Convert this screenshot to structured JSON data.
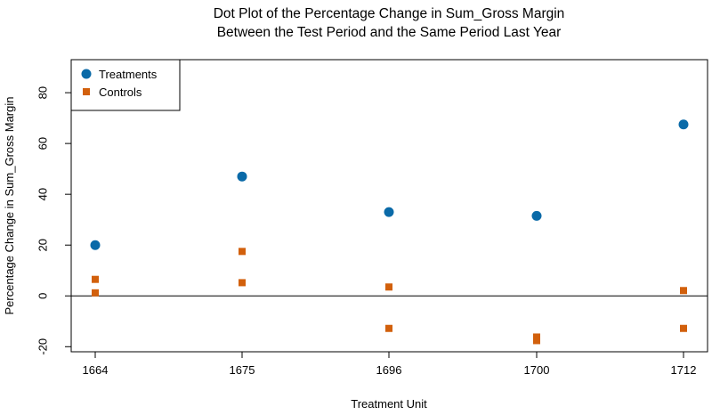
{
  "chart_data": {
    "type": "scatter",
    "title_lines": [
      "Dot Plot of the Percentage Change in Sum_Gross Margin",
      "Between the Test Period and the Same Period Last Year"
    ],
    "xlabel": "Treatment Unit",
    "ylabel": "Percentage Change in Sum_Gross Margin",
    "categories": [
      "1664",
      "1675",
      "1696",
      "1700",
      "1712"
    ],
    "ylim": [
      -22,
      93
    ],
    "yticks": [
      -20,
      0,
      20,
      40,
      60,
      80
    ],
    "reference_line_y": 0,
    "grid": false,
    "legend_position": "top-left",
    "series": [
      {
        "name": "Treatments",
        "marker": "circle",
        "color": "#0a6aa8",
        "points": [
          {
            "x": "1664",
            "y": 20
          },
          {
            "x": "1675",
            "y": 47
          },
          {
            "x": "1696",
            "y": 33
          },
          {
            "x": "1700",
            "y": 31.5
          },
          {
            "x": "1712",
            "y": 67.5
          }
        ]
      },
      {
        "name": "Controls",
        "marker": "square",
        "color": "#d2600c",
        "points": [
          {
            "x": "1664",
            "y": 6.5
          },
          {
            "x": "1664",
            "y": 1.2
          },
          {
            "x": "1675",
            "y": 17.5
          },
          {
            "x": "1675",
            "y": 5.2
          },
          {
            "x": "1696",
            "y": 3.5
          },
          {
            "x": "1696",
            "y": -12.8
          },
          {
            "x": "1700",
            "y": -16.2
          },
          {
            "x": "1700",
            "y": -17.6
          },
          {
            "x": "1712",
            "y": 2.1
          },
          {
            "x": "1712",
            "y": -12.8
          }
        ]
      }
    ]
  }
}
